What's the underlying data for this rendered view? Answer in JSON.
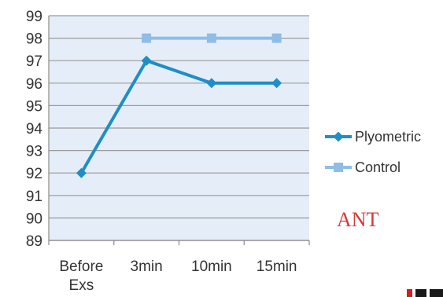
{
  "chart_data": {
    "type": "line",
    "categories": [
      "Before Exs",
      "3min",
      "10min",
      "15min"
    ],
    "category_lines": [
      [
        "Before",
        "Exs"
      ],
      [
        "3min"
      ],
      [
        "10min"
      ],
      [
        "15min"
      ]
    ],
    "series": [
      {
        "name": "Plyometric",
        "values": [
          92,
          97,
          96,
          96
        ],
        "color": "#1f8ec7",
        "marker": "diamond"
      },
      {
        "name": "Control",
        "values": [
          null,
          98,
          98,
          98
        ],
        "color": "#8fbde6",
        "marker": "square"
      }
    ],
    "ylim": [
      89,
      99
    ],
    "yticks": [
      89,
      90,
      91,
      92,
      93,
      94,
      95,
      96,
      97,
      98,
      99
    ],
    "grid": true,
    "plot_background": "#e5eef8",
    "legend_position": "right",
    "annotation": {
      "text": "ANT",
      "color": "#d23b3b"
    }
  }
}
